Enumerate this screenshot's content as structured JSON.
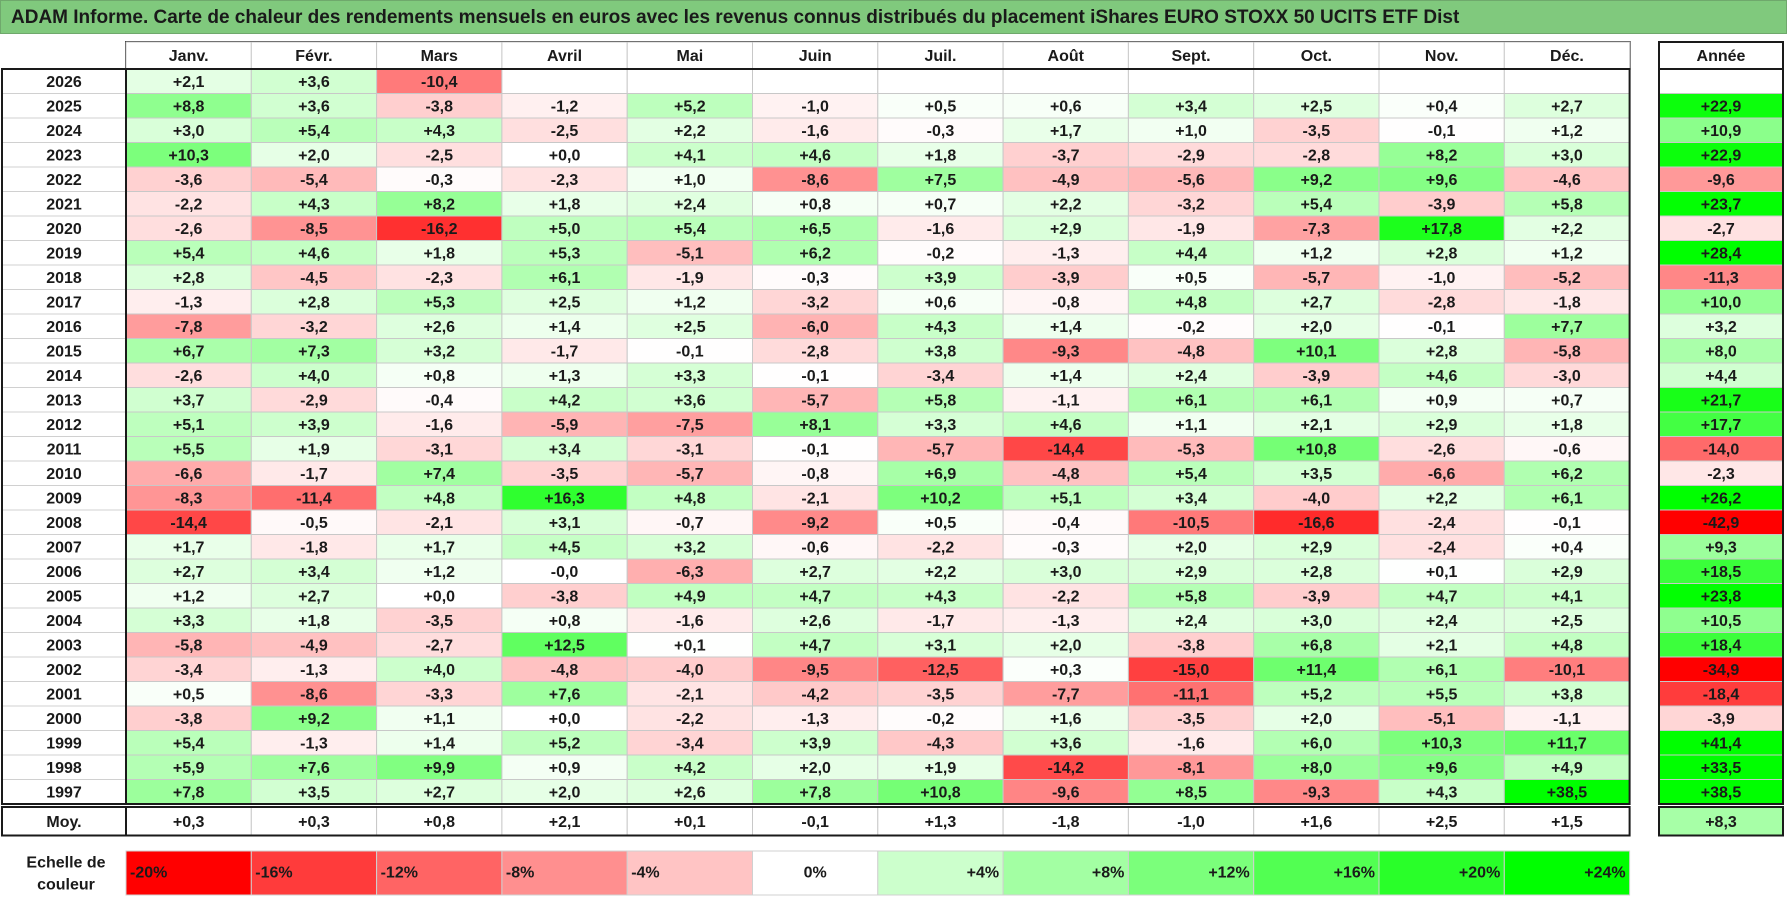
{
  "title": "ADAM Informe. Carte de chaleur des rendements mensuels en euros avec les revenus connus distribués du placement iShares EURO STOXX 50 UCITS ETF Dist",
  "chart_data": {
    "type": "heatmap",
    "title": "ADAM Informe. Carte de chaleur des rendements mensuels en euros avec les revenus connus distribués du placement iShares EURO STOXX 50 UCITS ETF Dist",
    "columns": [
      "Janv.",
      "Févr.",
      "Mars",
      "Avril",
      "Mai",
      "Juin",
      "Juil.",
      "Août",
      "Sept.",
      "Oct.",
      "Nov.",
      "Déc."
    ],
    "year_column_label": "Année",
    "average_label": "Moy.",
    "rows": [
      {
        "year": "2026",
        "months": [
          "+2,1",
          "+3,6",
          "-10,4",
          "",
          "",
          "",
          "",
          "",
          "",
          "",
          "",
          ""
        ],
        "annual": ""
      },
      {
        "year": "2025",
        "months": [
          "+8,8",
          "+3,6",
          "-3,8",
          "-1,2",
          "+5,2",
          "-1,0",
          "+0,5",
          "+0,6",
          "+3,4",
          "+2,5",
          "+0,4",
          "+2,7"
        ],
        "annual": "+22,9"
      },
      {
        "year": "2024",
        "months": [
          "+3,0",
          "+5,4",
          "+4,3",
          "-2,5",
          "+2,2",
          "-1,6",
          "-0,3",
          "+1,7",
          "+1,0",
          "-3,5",
          "-0,1",
          "+1,2"
        ],
        "annual": "+10,9"
      },
      {
        "year": "2023",
        "months": [
          "+10,3",
          "+2,0",
          "-2,5",
          "+0,0",
          "+4,1",
          "+4,6",
          "+1,8",
          "-3,7",
          "-2,9",
          "-2,8",
          "+8,2",
          "+3,0"
        ],
        "annual": "+22,9"
      },
      {
        "year": "2022",
        "months": [
          "-3,6",
          "-5,4",
          "-0,3",
          "-2,3",
          "+1,0",
          "-8,6",
          "+7,5",
          "-4,9",
          "-5,6",
          "+9,2",
          "+9,6",
          "-4,6"
        ],
        "annual": "-9,6"
      },
      {
        "year": "2021",
        "months": [
          "-2,2",
          "+4,3",
          "+8,2",
          "+1,8",
          "+2,4",
          "+0,8",
          "+0,7",
          "+2,2",
          "-3,2",
          "+5,4",
          "-3,9",
          "+5,8"
        ],
        "annual": "+23,7"
      },
      {
        "year": "2020",
        "months": [
          "-2,6",
          "-8,5",
          "-16,2",
          "+5,0",
          "+5,4",
          "+6,5",
          "-1,6",
          "+2,9",
          "-1,9",
          "-7,3",
          "+17,8",
          "+2,2"
        ],
        "annual": "-2,7"
      },
      {
        "year": "2019",
        "months": [
          "+5,4",
          "+4,6",
          "+1,8",
          "+5,3",
          "-5,1",
          "+6,2",
          "-0,2",
          "-1,3",
          "+4,4",
          "+1,2",
          "+2,8",
          "+1,2"
        ],
        "annual": "+28,4"
      },
      {
        "year": "2018",
        "months": [
          "+2,8",
          "-4,5",
          "-2,3",
          "+6,1",
          "-1,9",
          "-0,3",
          "+3,9",
          "-3,9",
          "+0,5",
          "-5,7",
          "-1,0",
          "-5,2"
        ],
        "annual": "-11,3"
      },
      {
        "year": "2017",
        "months": [
          "-1,3",
          "+2,8",
          "+5,3",
          "+2,5",
          "+1,2",
          "-3,2",
          "+0,6",
          "-0,8",
          "+4,8",
          "+2,7",
          "-2,8",
          "-1,8"
        ],
        "annual": "+10,0"
      },
      {
        "year": "2016",
        "months": [
          "-7,8",
          "-3,2",
          "+2,6",
          "+1,4",
          "+2,5",
          "-6,0",
          "+4,3",
          "+1,4",
          "-0,2",
          "+2,0",
          "-0,1",
          "+7,7"
        ],
        "annual": "+3,2"
      },
      {
        "year": "2015",
        "months": [
          "+6,7",
          "+7,3",
          "+3,2",
          "-1,7",
          "-0,1",
          "-2,8",
          "+3,8",
          "-9,3",
          "-4,8",
          "+10,1",
          "+2,8",
          "-5,8"
        ],
        "annual": "+8,0"
      },
      {
        "year": "2014",
        "months": [
          "-2,6",
          "+4,0",
          "+0,8",
          "+1,3",
          "+3,3",
          "-0,1",
          "-3,4",
          "+1,4",
          "+2,4",
          "-3,9",
          "+4,6",
          "-3,0"
        ],
        "annual": "+4,4"
      },
      {
        "year": "2013",
        "months": [
          "+3,7",
          "-2,9",
          "-0,4",
          "+4,2",
          "+3,6",
          "-5,7",
          "+5,8",
          "-1,1",
          "+6,1",
          "+6,1",
          "+0,9",
          "+0,7"
        ],
        "annual": "+21,7"
      },
      {
        "year": "2012",
        "months": [
          "+5,1",
          "+3,9",
          "-1,6",
          "-5,9",
          "-7,5",
          "+8,1",
          "+3,3",
          "+4,6",
          "+1,1",
          "+2,1",
          "+2,9",
          "+1,8"
        ],
        "annual": "+17,7"
      },
      {
        "year": "2011",
        "months": [
          "+5,5",
          "+1,9",
          "-3,1",
          "+3,4",
          "-3,1",
          "-0,1",
          "-5,7",
          "-14,4",
          "-5,3",
          "+10,8",
          "-2,6",
          "-0,6"
        ],
        "annual": "-14,0"
      },
      {
        "year": "2010",
        "months": [
          "-6,6",
          "-1,7",
          "+7,4",
          "-3,5",
          "-5,7",
          "-0,8",
          "+6,9",
          "-4,8",
          "+5,4",
          "+3,5",
          "-6,6",
          "+6,2"
        ],
        "annual": "-2,3"
      },
      {
        "year": "2009",
        "months": [
          "-8,3",
          "-11,4",
          "+4,8",
          "+16,3",
          "+4,8",
          "-2,1",
          "+10,2",
          "+5,1",
          "+3,4",
          "-4,0",
          "+2,2",
          "+6,1"
        ],
        "annual": "+26,2"
      },
      {
        "year": "2008",
        "months": [
          "-14,4",
          "-0,5",
          "-2,1",
          "+3,1",
          "-0,7",
          "-9,2",
          "+0,5",
          "-0,4",
          "-10,5",
          "-16,6",
          "-2,4",
          "-0,1"
        ],
        "annual": "-42,9"
      },
      {
        "year": "2007",
        "months": [
          "+1,7",
          "-1,8",
          "+1,7",
          "+4,5",
          "+3,2",
          "-0,6",
          "-2,2",
          "-0,3",
          "+2,0",
          "+2,9",
          "-2,4",
          "+0,4"
        ],
        "annual": "+9,3"
      },
      {
        "year": "2006",
        "months": [
          "+2,7",
          "+3,4",
          "+1,2",
          "-0,0",
          "-6,3",
          "+2,7",
          "+2,2",
          "+3,0",
          "+2,9",
          "+2,8",
          "+0,1",
          "+2,9"
        ],
        "annual": "+18,5"
      },
      {
        "year": "2005",
        "months": [
          "+1,2",
          "+2,7",
          "+0,0",
          "-3,8",
          "+4,9",
          "+4,7",
          "+4,3",
          "-2,2",
          "+5,8",
          "-3,9",
          "+4,7",
          "+4,1"
        ],
        "annual": "+23,8"
      },
      {
        "year": "2004",
        "months": [
          "+3,3",
          "+1,8",
          "-3,5",
          "+0,8",
          "-1,6",
          "+2,6",
          "-1,7",
          "-1,3",
          "+2,4",
          "+3,0",
          "+2,4",
          "+2,5"
        ],
        "annual": "+10,5"
      },
      {
        "year": "2003",
        "months": [
          "-5,8",
          "-4,9",
          "-2,7",
          "+12,5",
          "+0,1",
          "+4,7",
          "+3,1",
          "+2,0",
          "-3,8",
          "+6,8",
          "+2,1",
          "+4,8"
        ],
        "annual": "+18,4"
      },
      {
        "year": "2002",
        "months": [
          "-3,4",
          "-1,3",
          "+4,0",
          "-4,8",
          "-4,0",
          "-9,5",
          "-12,5",
          "+0,3",
          "-15,0",
          "+11,4",
          "+6,1",
          "-10,1"
        ],
        "annual": "-34,9"
      },
      {
        "year": "2001",
        "months": [
          "+0,5",
          "-8,6",
          "-3,3",
          "+7,6",
          "-2,1",
          "-4,2",
          "-3,5",
          "-7,7",
          "-11,1",
          "+5,2",
          "+5,5",
          "+3,8"
        ],
        "annual": "-18,4"
      },
      {
        "year": "2000",
        "months": [
          "-3,8",
          "+9,2",
          "+1,1",
          "+0,0",
          "-2,2",
          "-1,3",
          "-0,2",
          "+1,6",
          "-3,5",
          "+2,0",
          "-5,1",
          "-1,1"
        ],
        "annual": "-3,9"
      },
      {
        "year": "1999",
        "months": [
          "+5,4",
          "-1,3",
          "+1,4",
          "+5,2",
          "-3,4",
          "+3,9",
          "-4,3",
          "+3,6",
          "-1,6",
          "+6,0",
          "+10,3",
          "+11,7"
        ],
        "annual": "+41,4"
      },
      {
        "year": "1998",
        "months": [
          "+5,9",
          "+7,6",
          "+9,9",
          "+0,9",
          "+4,2",
          "+2,0",
          "+1,9",
          "-14,2",
          "-8,1",
          "+8,0",
          "+9,6",
          "+4,9"
        ],
        "annual": "+33,5"
      },
      {
        "year": "1997",
        "months": [
          "+7,8",
          "+3,5",
          "+2,7",
          "+2,0",
          "+2,6",
          "+7,8",
          "+10,8",
          "-9,6",
          "+8,5",
          "-9,3",
          "+4,3",
          "+38,5"
        ],
        "annual": "+38,5"
      }
    ],
    "averages": {
      "months": [
        "+0,3",
        "+0,3",
        "+0,8",
        "+2,1",
        "+0,1",
        "-0,1",
        "+1,3",
        "-1,8",
        "-1,0",
        "+1,6",
        "+2,5",
        "+1,5"
      ],
      "annual": "+8,3"
    },
    "scale": {
      "label_line1": "Echelle de",
      "label_line2": "couleur",
      "steps": [
        {
          "label": "-20%",
          "value": -20,
          "color": "#ff0000"
        },
        {
          "label": "-16%",
          "value": -16,
          "color": "#ff3b3b"
        },
        {
          "label": "-12%",
          "value": -12,
          "color": "#ff6464"
        },
        {
          "label": "-8%",
          "value": -8,
          "color": "#ff8f8f"
        },
        {
          "label": "-4%",
          "value": -4,
          "color": "#ffc4c4"
        },
        {
          "label": "0%",
          "value": 0,
          "color": "#ffffff"
        },
        {
          "label": "+4%",
          "value": 4,
          "color": "#ccffcc"
        },
        {
          "label": "+8%",
          "value": 8,
          "color": "#a3ffa3"
        },
        {
          "label": "+12%",
          "value": 12,
          "color": "#7bff7b"
        },
        {
          "label": "+16%",
          "value": 16,
          "color": "#52ff52"
        },
        {
          "label": "+20%",
          "value": 20,
          "color": "#29ff29"
        },
        {
          "label": "+24%",
          "value": 24,
          "color": "#00ff00"
        }
      ]
    }
  },
  "colors": {
    "title_bar": "#80c97d",
    "grid_line": "#c8c8c8",
    "text": "#1a1a1a"
  }
}
